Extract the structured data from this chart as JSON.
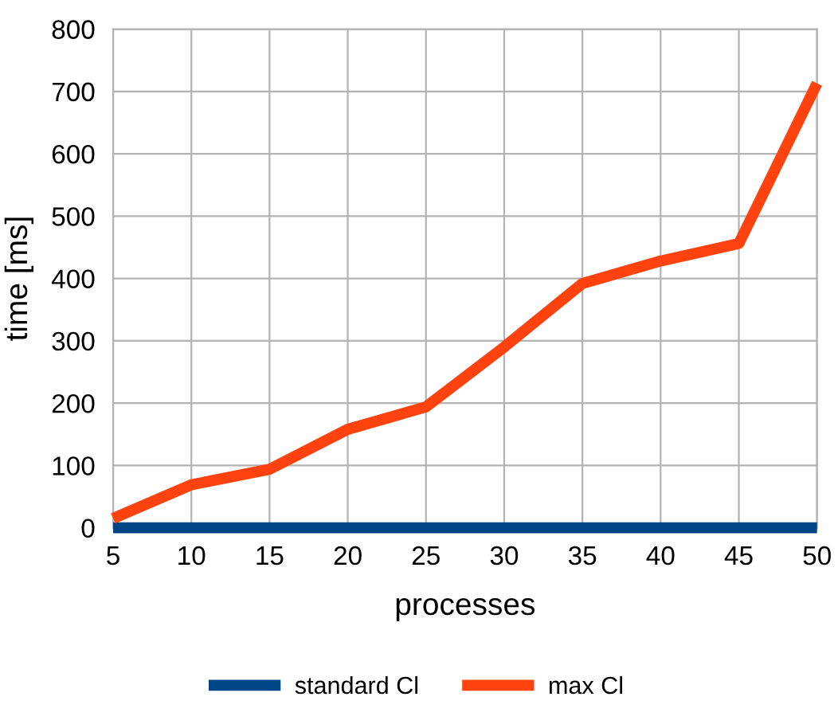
{
  "chart_data": {
    "type": "line",
    "xlabel": "processes",
    "ylabel": "time [ms]",
    "categories": [
      "5",
      "10",
      "15",
      "20",
      "25",
      "30",
      "35",
      "40",
      "45",
      "50"
    ],
    "series": [
      {
        "name": "standard Cl",
        "color": "#004586",
        "values": [
          0,
          0,
          0,
          0,
          0,
          0,
          0,
          0,
          0,
          0
        ]
      },
      {
        "name": "max Cl",
        "color": "#ff420e",
        "values": [
          15,
          69,
          94,
          158,
          194,
          290,
          392,
          428,
          456,
          713
        ]
      }
    ],
    "ylim": [
      0,
      800
    ],
    "yticks": [
      0,
      100,
      200,
      300,
      400,
      500,
      600,
      700,
      800
    ],
    "grid": true,
    "legend": "bottom",
    "marker": "none",
    "line_style": "solid"
  }
}
